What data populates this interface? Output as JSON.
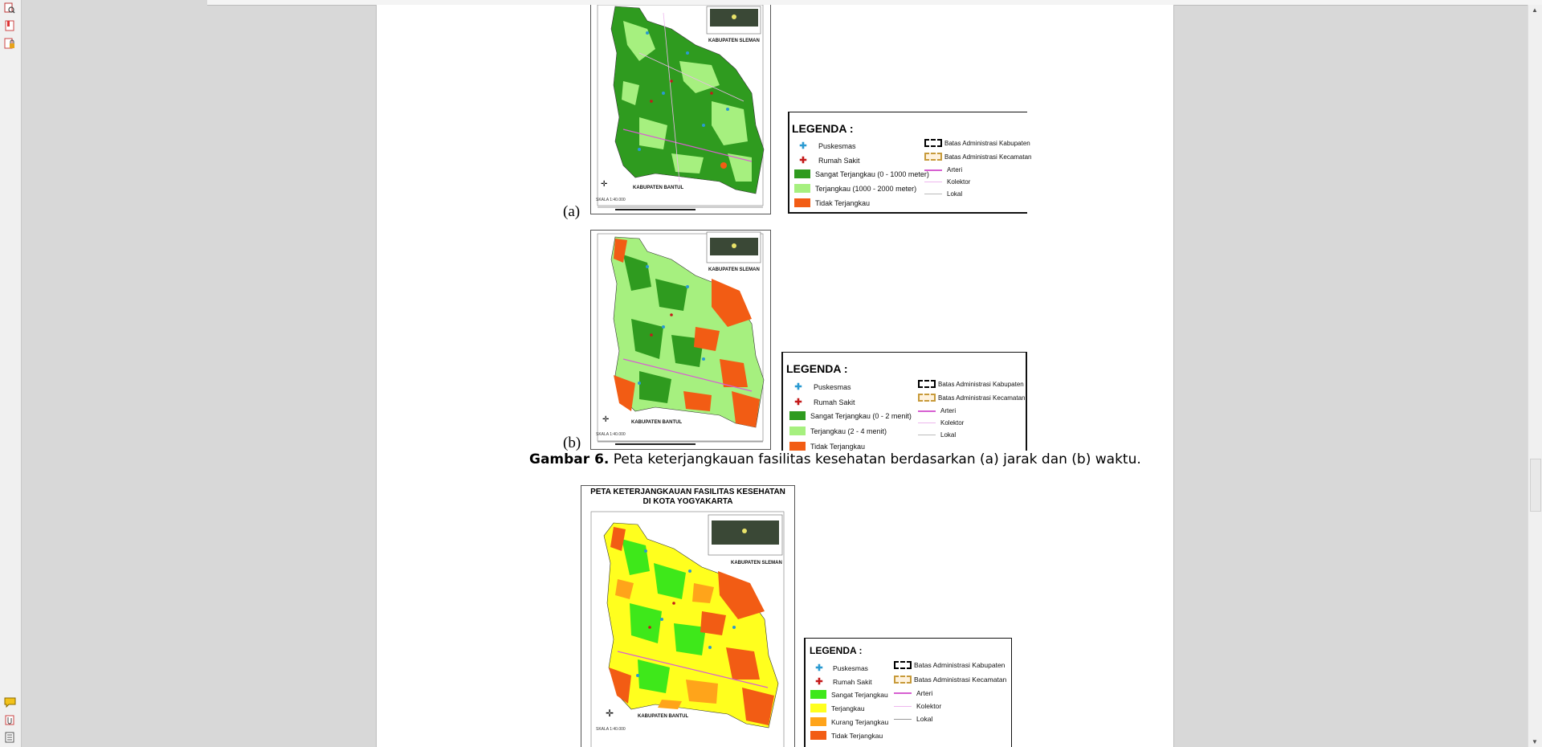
{
  "viewer": {
    "left_tools": [
      "page-search-icon",
      "bookmark-icon",
      "lock-attachment-icon"
    ],
    "bottom_tools": [
      "comment-icon",
      "attachment-icon",
      "layers-icon"
    ]
  },
  "page": {
    "map_a": {
      "label": "(a)",
      "sleman": "KABUPATEN SLEMAN",
      "bantul": "KABUPATEN BANTUL",
      "scale": "SKALA 1:40.000",
      "legend": {
        "title": "LEGENDA :",
        "items": [
          {
            "label": "Puskesmas"
          },
          {
            "label": "Rumah Sakit"
          },
          {
            "label": "Sangat Terjangkau (0 - 1000 meter)",
            "color": "#2f9b1f"
          },
          {
            "label": "Terjangkau (1000 - 2000 meter)",
            "color": "#a6f07f"
          },
          {
            "label": "Tidak Terjangkau",
            "color": "#f25c14"
          }
        ],
        "lines": [
          {
            "label": "Batas Administrasi Kabupaten"
          },
          {
            "label": "Batas Administrasi Kecamatan"
          },
          {
            "label": "Arteri"
          },
          {
            "label": "Kolektor"
          },
          {
            "label": "Lokal"
          }
        ]
      }
    },
    "map_b": {
      "label": "(b)",
      "sleman": "KABUPATEN SLEMAN",
      "bantul": "KABUPATEN BANTUL",
      "scale": "SKALA 1:40.000",
      "legend": {
        "title": "LEGENDA :",
        "items": [
          {
            "label": "Puskesmas"
          },
          {
            "label": "Rumah Sakit"
          },
          {
            "label": "Sangat Terjangkau (0 - 2 menit)",
            "color": "#2f9b1f"
          },
          {
            "label": "Terjangkau (2 - 4 menit)",
            "color": "#a6f07f"
          },
          {
            "label": "Tidak Terjangkau",
            "color": "#f25c14"
          }
        ],
        "lines": [
          {
            "label": "Batas Administrasi Kabupaten"
          },
          {
            "label": "Batas Administrasi Kecamatan"
          },
          {
            "label": "Arteri"
          },
          {
            "label": "Kolektor"
          },
          {
            "label": "Lokal"
          }
        ]
      }
    },
    "caption": {
      "bold": "Gambar 6.",
      "text": " Peta keterjangkauan fasilitas kesehatan berdasarkan (a) jarak dan (b) waktu."
    },
    "map_c": {
      "title_line1": "PETA KETERJANGKAUAN FASILITAS KESEHATAN",
      "title_line2": "DI KOTA YOGYAKARTA",
      "sleman": "KABUPATEN SLEMAN",
      "bantul": "KABUPATEN BANTUL",
      "scale": "SKALA 1:40.000",
      "legend": {
        "title": "LEGENDA :",
        "items": [
          {
            "label": "Puskesmas"
          },
          {
            "label": "Rumah Sakit"
          },
          {
            "label": "Sangat Terjangkau",
            "color": "#3ee81a"
          },
          {
            "label": "Terjangkau",
            "color": "#ffff1e"
          },
          {
            "label": "Kurang Terjangkau",
            "color": "#ffa41a"
          },
          {
            "label": "Tidak Terjangkau",
            "color": "#f25c14"
          }
        ],
        "lines": [
          {
            "label": "Batas Administrasi Kabupaten"
          },
          {
            "label": "Batas Administrasi Kecamatan"
          },
          {
            "label": "Arteri"
          },
          {
            "label": "Kolektor"
          },
          {
            "label": "Lokal"
          }
        ]
      }
    }
  }
}
